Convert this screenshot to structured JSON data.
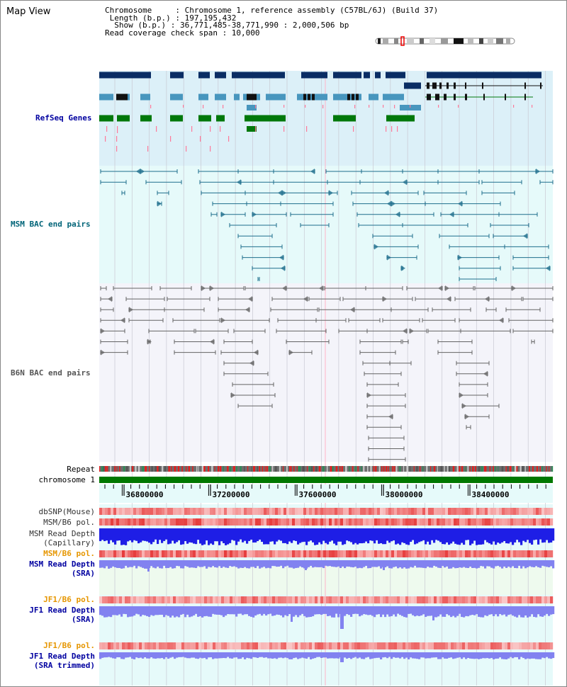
{
  "title": "Map View",
  "info": {
    "chromosome": "Chromosome     : Chromosome 1, reference assembly (C57BL/6J) (Build 37)",
    "length": " Length (b.p.) : 197,195,432",
    "show": "  Show (b.p.) : 36,771,485-38,771,990 : 2,000,506 bp",
    "coverage": "Read coverage check span : 10,000"
  },
  "tracks": {
    "refseq": "RefSeq Genes",
    "msm_bac": "MSM BAC end pairs",
    "b6n_bac": "B6N BAC end pairs",
    "repeat": "Repeat",
    "chromosome": "chromosome 1",
    "dbsnp": "dbSNP(Mouse)",
    "msm_pol1": "MSM/B6 pol.",
    "msm_depth_cap_1": "MSM Read Depth",
    "msm_depth_cap_2": "(Capillary)",
    "msm_pol2": "MSM/B6 pol.",
    "msm_depth_sra_1": "MSM Read Depth",
    "msm_depth_sra_2": "(SRA)",
    "jf1_pol1": "JF1/B6 pol.",
    "jf1_depth_1": "JF1 Read Depth",
    "jf1_depth_2": "(SRA)",
    "jf1_pol2": "JF1/B6 pol.",
    "jf1_trim_1": "JF1 Read Depth",
    "jf1_trim_2": "(SRA trimmed)"
  },
  "axis": {
    "ticks": [
      "36800000",
      "37200000",
      "37600000",
      "38000000",
      "38400000"
    ]
  },
  "colors": {
    "refseq_bg": "#dcf0f8",
    "msm_bg": "#e6fafa",
    "b6n_bg": "#f4f4fa",
    "gene_dark": "#0a2d64",
    "gene_light": "#4896be",
    "gene_green": "#00780a",
    "msm_pair": "#1e6e8c",
    "b6n_pair": "#646464",
    "chrom": "#007800",
    "depth_blue": "#1e1ee6",
    "depth_light": "#8282f0",
    "label_blue": "#0000a0",
    "label_orange": "#e69600",
    "label_teal": "#006478"
  }
}
